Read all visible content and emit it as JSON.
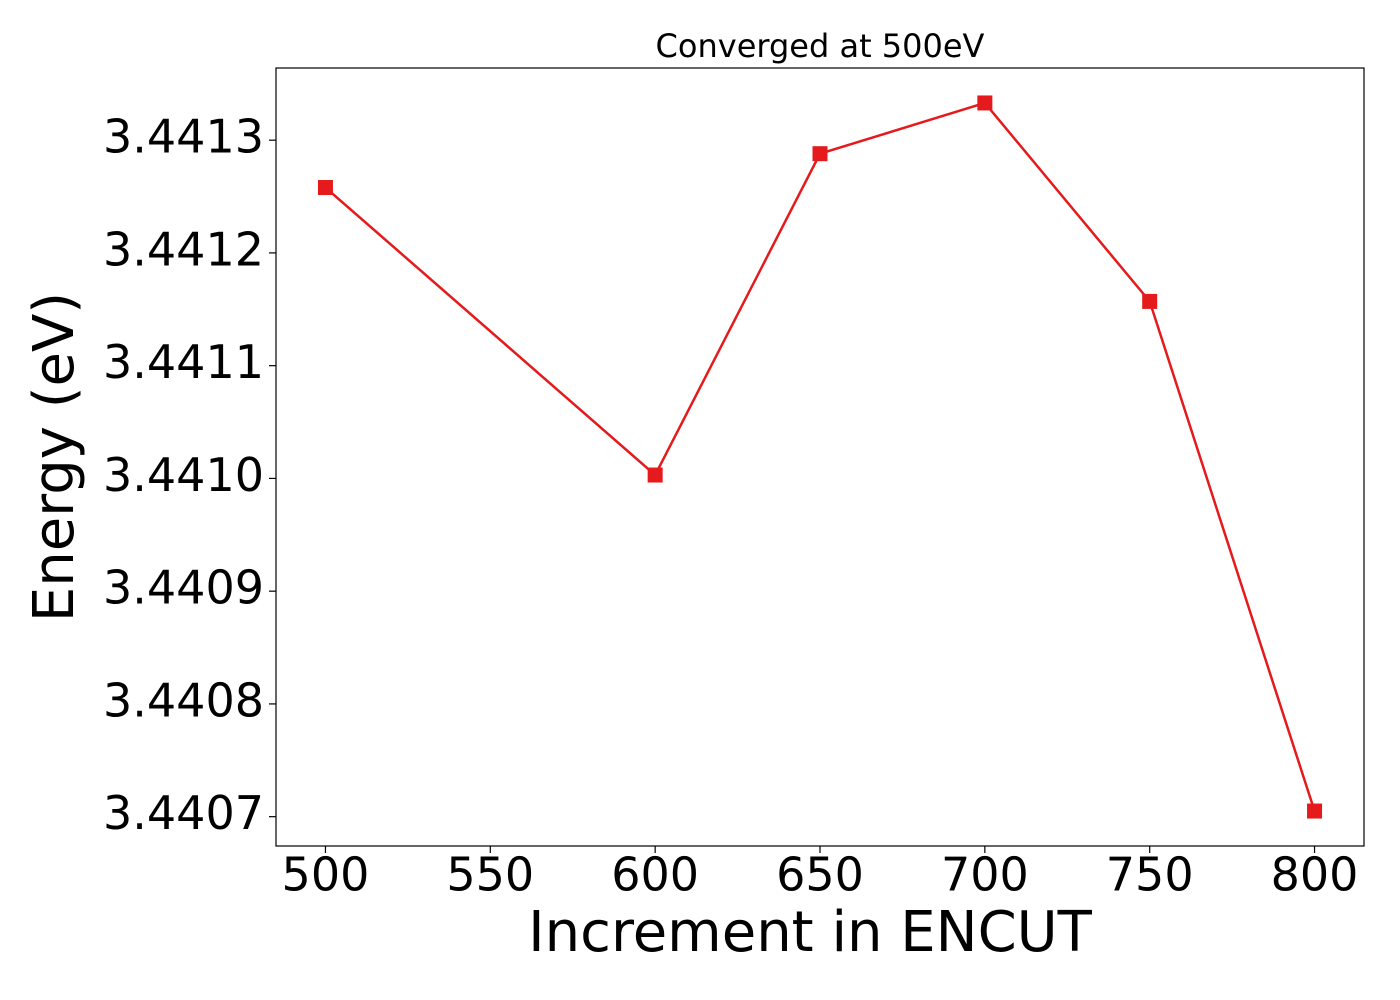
{
  "chart_data": {
    "type": "line",
    "title": "Converged at 500eV",
    "x_label": "Increment in ENCUT",
    "y_label": "Energy (eV)",
    "x": [
      500,
      600,
      650,
      700,
      750,
      800
    ],
    "values": [
      3.441258,
      3.441003,
      3.441288,
      3.441333,
      3.441157,
      3.440705
    ],
    "color": "#e41a1c",
    "marker": "square",
    "xlim": [
      485,
      815
    ],
    "xticks": [
      500,
      550,
      600,
      650,
      700,
      750,
      800
    ],
    "ylim": [
      3.440674,
      3.441364
    ],
    "yticks": [
      {
        "value": 3.4407,
        "label": "3.4407"
      },
      {
        "value": 3.4408,
        "label": "3.4408"
      },
      {
        "value": 3.4409,
        "label": "3.4409"
      },
      {
        "value": 3.441,
        "label": "3.4410"
      },
      {
        "value": 3.4411,
        "label": "3.4411"
      },
      {
        "value": 3.4412,
        "label": "3.4412"
      },
      {
        "value": 3.4413,
        "label": "3.4413"
      }
    ],
    "grid": false
  }
}
